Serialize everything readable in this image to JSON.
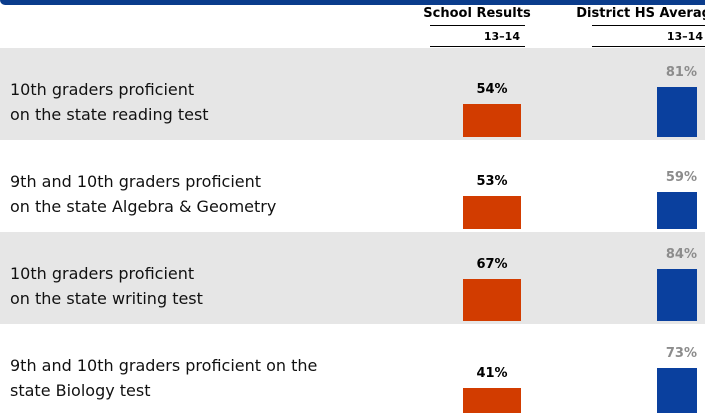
{
  "chart_data": {
    "type": "bar",
    "categories": [
      [
        "10th graders proficient",
        "on the state reading test"
      ],
      [
        "9th and 10th graders proficient",
        "on the state Algebra & Geometry"
      ],
      [
        "10th graders proficient",
        "on the state writing test"
      ],
      [
        "9th and 10th graders proficient on the",
        "state Biology test"
      ]
    ],
    "series": [
      {
        "name": "School Results",
        "period": "13–14",
        "color": "#d23c00",
        "label_color": "#000000",
        "values": [
          54,
          53,
          67,
          41
        ],
        "value_labels": [
          "54%",
          "53%",
          "67%",
          "41%"
        ]
      },
      {
        "name": "District HS Average",
        "period": "13–14",
        "color": "#0a409e",
        "label_color": "#8c8c8c",
        "values": [
          81,
          59,
          84,
          73
        ],
        "value_labels": [
          "81%",
          "59%",
          "84%",
          "73%"
        ]
      }
    ],
    "row_colors": [
      "#e6e6e6",
      "#ffffff"
    ]
  }
}
